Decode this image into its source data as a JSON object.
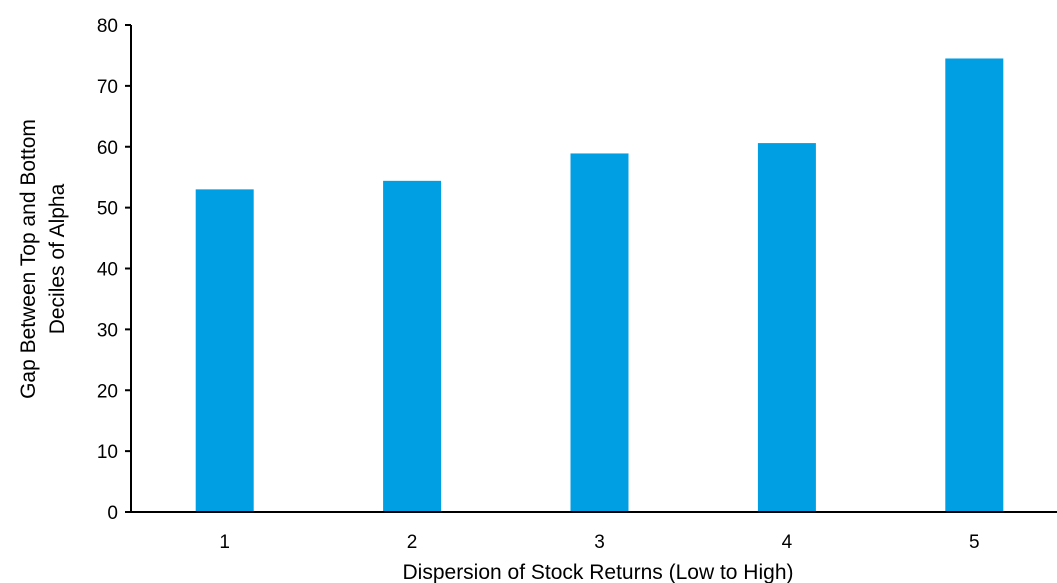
{
  "chart_data": {
    "type": "bar",
    "categories": [
      "1",
      "2",
      "3",
      "4",
      "5"
    ],
    "values": [
      53,
      54.4,
      58.9,
      60.6,
      74.5
    ],
    "title": "",
    "xlabel": "Dispersion of Stock Returns (Low to High)",
    "ylabel_lines": [
      "Gap Between Top and Bottom",
      "Deciles of Alpha"
    ],
    "ylim": [
      0,
      80
    ],
    "yticks": [
      "0",
      "10",
      "20",
      "30",
      "40",
      "50",
      "60",
      "70",
      "80"
    ],
    "grid": false,
    "legend": "none",
    "bar_color": "#009FE3"
  }
}
